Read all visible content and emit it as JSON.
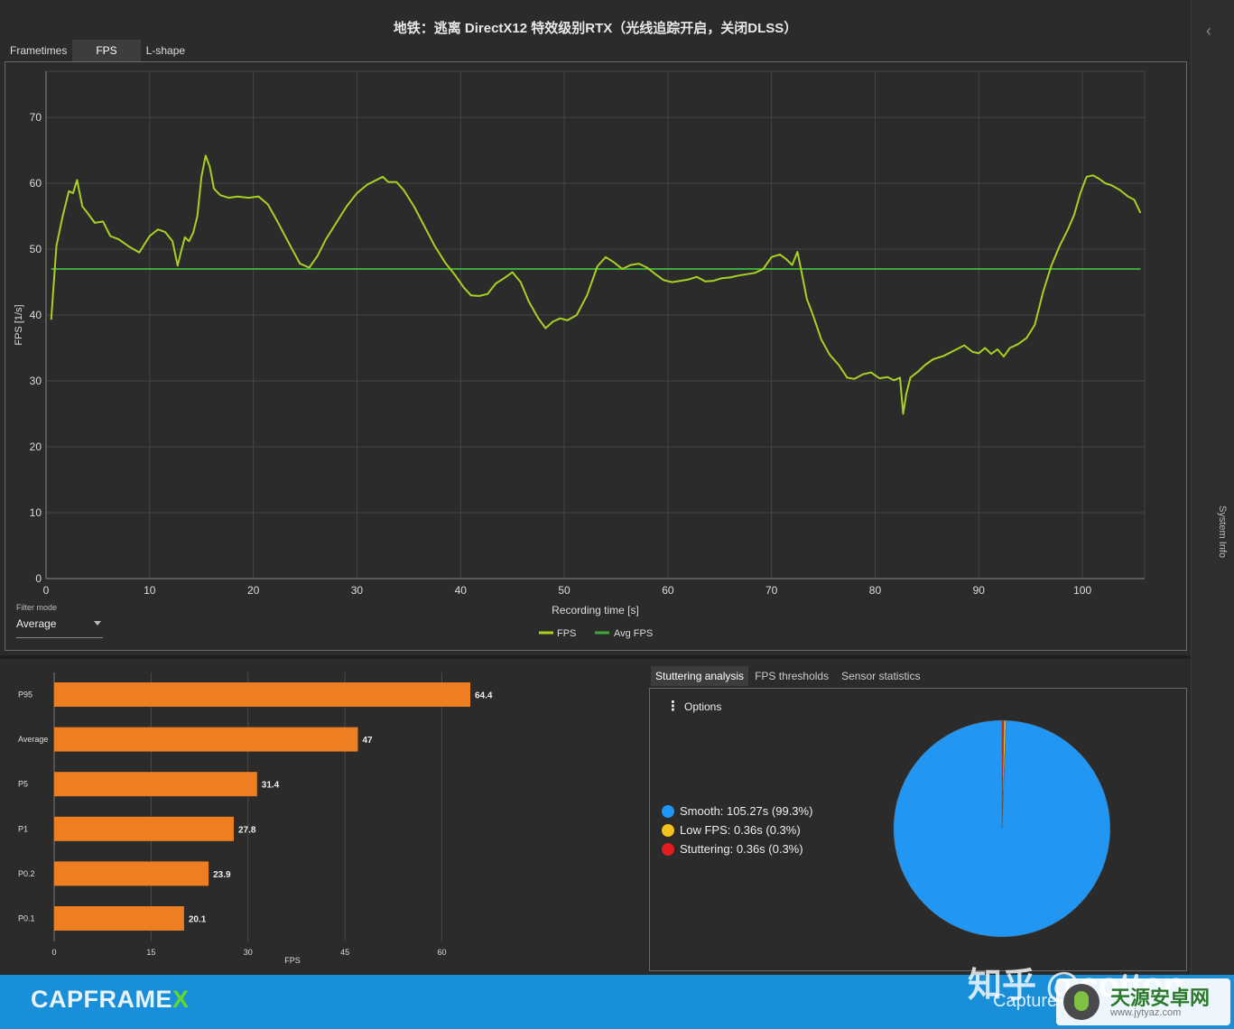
{
  "window": {
    "title": "地铁：逃离 DirectX12 特效级别RTX（光线追踪开启，关闭DLSS）"
  },
  "main_tabs": [
    {
      "label": "Frametimes",
      "active": false
    },
    {
      "label": "FPS",
      "active": true
    },
    {
      "label": "L-shape",
      "active": false
    }
  ],
  "sidebar": {
    "label": "System Info",
    "chevron": "‹"
  },
  "filter": {
    "label": "Filter mode",
    "value": "Average"
  },
  "fps_chart": {
    "type": "line",
    "xlabel": "Recording time [s]",
    "ylabel": "FPS [1/s]",
    "xlim": [
      0,
      106
    ],
    "ylim": [
      0,
      77
    ],
    "x_ticks": [
      0,
      10,
      20,
      30,
      40,
      50,
      60,
      70,
      80,
      90,
      100
    ],
    "y_ticks": [
      0,
      10,
      20,
      30,
      40,
      50,
      60,
      70
    ],
    "legend": [
      "FPS",
      "Avg FPS"
    ],
    "colors": {
      "fps": "#a8d122",
      "avg": "#3ca83c",
      "grid": "#454545",
      "axis": "#8a8a8a"
    }
  },
  "chart_data": [
    {
      "type": "line",
      "xlabel": "Recording time [s]",
      "ylabel": "FPS [1/s]",
      "series": [
        {
          "name": "FPS",
          "x": [
            0.5,
            1,
            1.6,
            2.2,
            2.6,
            3,
            3.5,
            4,
            4.7,
            5.5,
            6.2,
            7,
            8,
            9,
            10,
            10.8,
            11.5,
            12.2,
            12.7,
            13,
            13.4,
            13.8,
            14.2,
            14.6,
            15,
            15.4,
            15.8,
            16.2,
            16.8,
            17.6,
            18.5,
            19.5,
            20.5,
            21.4,
            22.3,
            23.4,
            24.5,
            25.4,
            26.2,
            27,
            28,
            29,
            30,
            31,
            32,
            32.5,
            33,
            33.8,
            34.5,
            35.5,
            36.5,
            37.5,
            38.5,
            39.5,
            40.3,
            41,
            41.8,
            42.6,
            43.4,
            44.2,
            45,
            45.8,
            46.6,
            47.5,
            48.2,
            48.9,
            49.6,
            50.3,
            51.2,
            52.2,
            53.2,
            54,
            54.8,
            55.6,
            56.4,
            57.2,
            58,
            58.8,
            59.6,
            60.4,
            61.2,
            62,
            62.8,
            63.6,
            64.4,
            65.2,
            66,
            66.8,
            67.6,
            68.4,
            69.2,
            70,
            70.8,
            71.4,
            72,
            72.5,
            72.9,
            73.4,
            74,
            74.8,
            75.6,
            76.5,
            77.3,
            78,
            78.8,
            79.6,
            80.4,
            81.2,
            81.8,
            82.4,
            82.7,
            83,
            83.4,
            83.8,
            84.2,
            84.8,
            85.6,
            86.6,
            87.6,
            88.6,
            89.4,
            90,
            90.6,
            91.2,
            91.8,
            92.4,
            93,
            93.8,
            94.6,
            95.4,
            96.2,
            97,
            97.8,
            98.6,
            99.2,
            99.8,
            100.4,
            101,
            101.6,
            102.2,
            102.8,
            103.6,
            104.4,
            105,
            105.6
          ],
          "y": [
            39.3,
            50.5,
            55,
            58.8,
            58.5,
            60.5,
            56.5,
            55.5,
            54,
            54.2,
            52,
            51.5,
            50.4,
            49.5,
            52,
            53,
            52.6,
            51.2,
            47.5,
            49.5,
            51.8,
            51.2,
            52.5,
            55,
            61,
            64.2,
            62.5,
            59.2,
            58.2,
            57.8,
            58,
            57.8,
            58,
            56.8,
            54.3,
            51,
            47.8,
            47.2,
            49,
            51.5,
            54,
            56.5,
            58.5,
            59.8,
            60.6,
            61,
            60.2,
            60.2,
            59,
            56.5,
            53.5,
            50.5,
            48,
            46,
            44.2,
            43,
            42.9,
            43.2,
            44.8,
            45.6,
            46.5,
            45,
            42,
            39.5,
            38,
            39,
            39.5,
            39.2,
            40,
            43,
            47.4,
            48.8,
            48,
            47,
            47.6,
            47.8,
            47.2,
            46.2,
            45.3,
            45,
            45.2,
            45.4,
            45.8,
            45.1,
            45.2,
            45.6,
            45.7,
            46,
            46.2,
            46.4,
            47,
            48.8,
            49.2,
            48.5,
            47.6,
            49.6,
            46.5,
            42.5,
            40,
            36.3,
            34,
            32.4,
            30.5,
            30.3,
            31,
            31.3,
            30.4,
            30.6,
            30.1,
            30.5,
            25,
            28,
            30.5,
            31,
            31.5,
            32.4,
            33.3,
            33.8,
            34.6,
            35.4,
            34.4,
            34.2,
            35,
            34.1,
            34.8,
            33.7,
            35,
            35.6,
            36.5,
            38.5,
            43.5,
            47.5,
            50.5,
            53,
            55.2,
            58.5,
            61,
            61.2,
            60.7,
            60,
            59.7,
            59,
            58,
            57.5,
            55.5
          ]
        },
        {
          "name": "Avg FPS",
          "x": [
            0.5,
            105.6
          ],
          "y": [
            47,
            47
          ]
        }
      ]
    },
    {
      "type": "bar",
      "xlabel": "FPS",
      "categories": [
        "P95",
        "Average",
        "P5",
        "P1",
        "P0.2",
        "P0.1"
      ],
      "values": [
        64.4,
        47,
        31.4,
        27.8,
        23.9,
        20.1
      ],
      "x_ticks": [
        0,
        15,
        30,
        45,
        60
      ],
      "xlim": [
        0,
        64.4
      ],
      "colors": {
        "bar": "#ee7e22"
      }
    },
    {
      "type": "pie",
      "categories": [
        "Smooth",
        "Low FPS",
        "Stuttering"
      ],
      "values": [
        99.3,
        0.3,
        0.3
      ],
      "seconds": [
        105.27,
        0.36,
        0.36
      ],
      "colors": [
        "#2196f3",
        "#f2c21b",
        "#e31c1c"
      ]
    }
  ],
  "lower_tabs": [
    {
      "label": "Stuttering analysis",
      "active": true
    },
    {
      "label": "FPS thresholds",
      "active": false
    },
    {
      "label": "Sensor statistics",
      "active": false
    }
  ],
  "stutter": {
    "options_label": "Options",
    "legend": [
      {
        "text": "Smooth:  105.27s (99.3%)",
        "color": "#2196f3"
      },
      {
        "text": "Low FPS:  0.36s (0.3%)",
        "color": "#f2c21b"
      },
      {
        "text": "Stuttering:  0.36s (0.3%)",
        "color": "#e31c1c"
      }
    ]
  },
  "footer": {
    "logo_main": "CAPFRAME",
    "logo_x": "X",
    "watermark": "知乎 @cotton",
    "watermark_sub": "Capture",
    "badge_title": "天源安卓网",
    "badge_url": "www.jytyaz.com"
  }
}
